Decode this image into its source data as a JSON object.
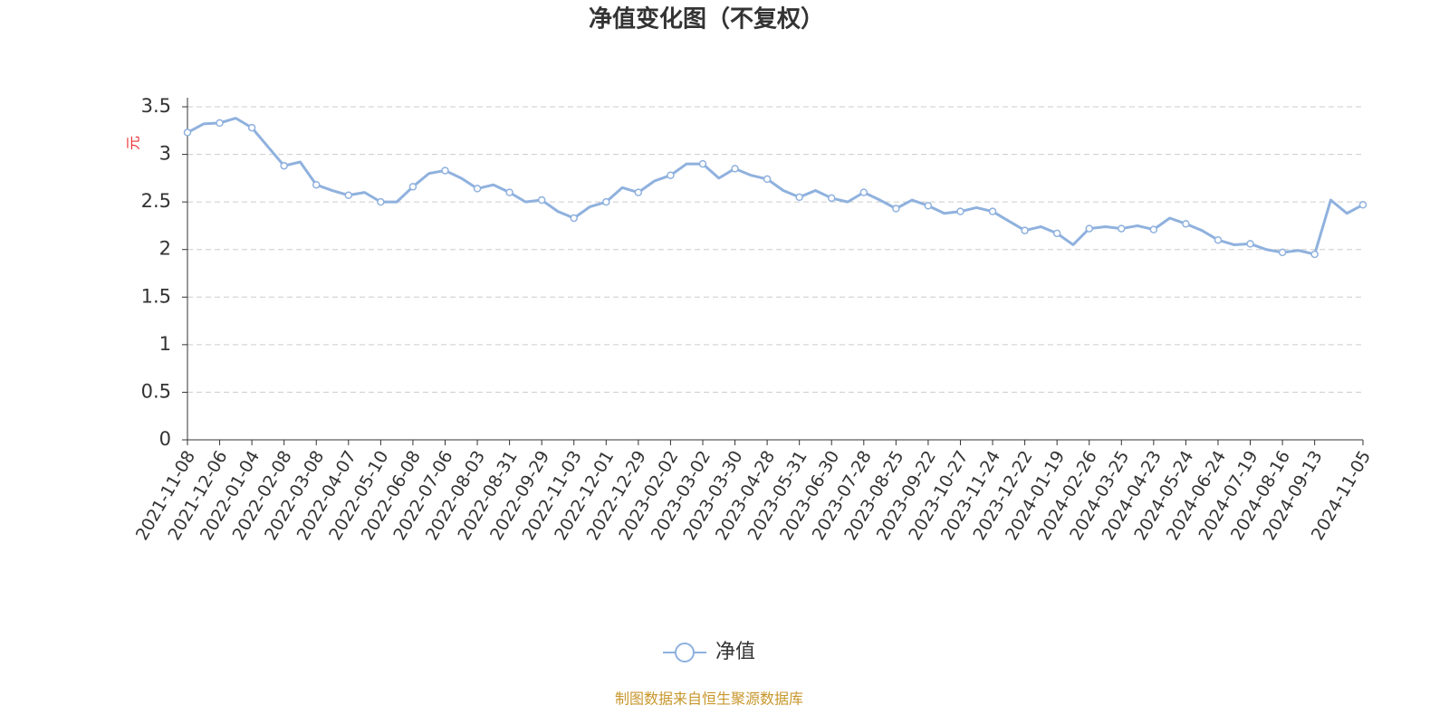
{
  "chart_data": {
    "type": "line",
    "title": "净值变化图（不复权）",
    "y_label": "元",
    "source": "制图数据来自恒生聚源数据库",
    "categories": [
      "2021-11-08",
      null,
      "2021-12-06",
      null,
      "2022-01-04",
      null,
      "2022-02-08",
      null,
      "2022-03-08",
      null,
      "2022-04-07",
      null,
      "2022-05-10",
      null,
      "2022-06-08",
      null,
      "2022-07-06",
      null,
      "2022-08-03",
      null,
      "2022-08-31",
      null,
      "2022-09-29",
      null,
      "2022-11-03",
      null,
      "2022-12-01",
      null,
      "2022-12-29",
      null,
      "2023-02-02",
      null,
      "2023-03-02",
      null,
      "2023-03-30",
      null,
      "2023-04-28",
      null,
      "2023-05-31",
      null,
      "2023-06-30",
      null,
      "2023-07-28",
      null,
      "2023-08-25",
      null,
      "2023-09-22",
      null,
      "2023-10-27",
      null,
      "2023-11-24",
      null,
      "2023-12-22",
      null,
      "2024-01-19",
      null,
      "2024-02-26",
      null,
      "2024-03-25",
      null,
      "2024-04-23",
      null,
      "2024-05-24",
      null,
      "2024-06-24",
      null,
      "2024-07-19",
      null,
      "2024-08-16",
      null,
      "2024-09-13",
      null,
      null,
      "2024-11-05"
    ],
    "series": [
      {
        "name": "净值",
        "color": "#8fb1de",
        "values": [
          3.23,
          3.32,
          3.33,
          3.38,
          3.28,
          3.08,
          2.88,
          2.92,
          2.68,
          2.62,
          2.57,
          2.6,
          2.5,
          2.5,
          2.66,
          2.8,
          2.83,
          2.75,
          2.64,
          2.68,
          2.6,
          2.5,
          2.52,
          2.4,
          2.33,
          2.45,
          2.5,
          2.65,
          2.6,
          2.72,
          2.78,
          2.9,
          2.9,
          2.75,
          2.85,
          2.78,
          2.74,
          2.62,
          2.55,
          2.62,
          2.54,
          2.5,
          2.6,
          2.52,
          2.43,
          2.52,
          2.46,
          2.38,
          2.4,
          2.44,
          2.4,
          2.3,
          2.2,
          2.24,
          2.17,
          2.05,
          2.22,
          2.24,
          2.22,
          2.25,
          2.21,
          2.33,
          2.27,
          2.2,
          2.1,
          2.05,
          2.06,
          2.0,
          1.97,
          1.99,
          1.95,
          2.52,
          2.38,
          2.47
        ]
      }
    ],
    "ylim": [
      0,
      3.5
    ],
    "yticks": [
      0,
      0.5,
      1,
      1.5,
      2,
      2.5,
      3,
      3.5
    ],
    "grid": true
  }
}
